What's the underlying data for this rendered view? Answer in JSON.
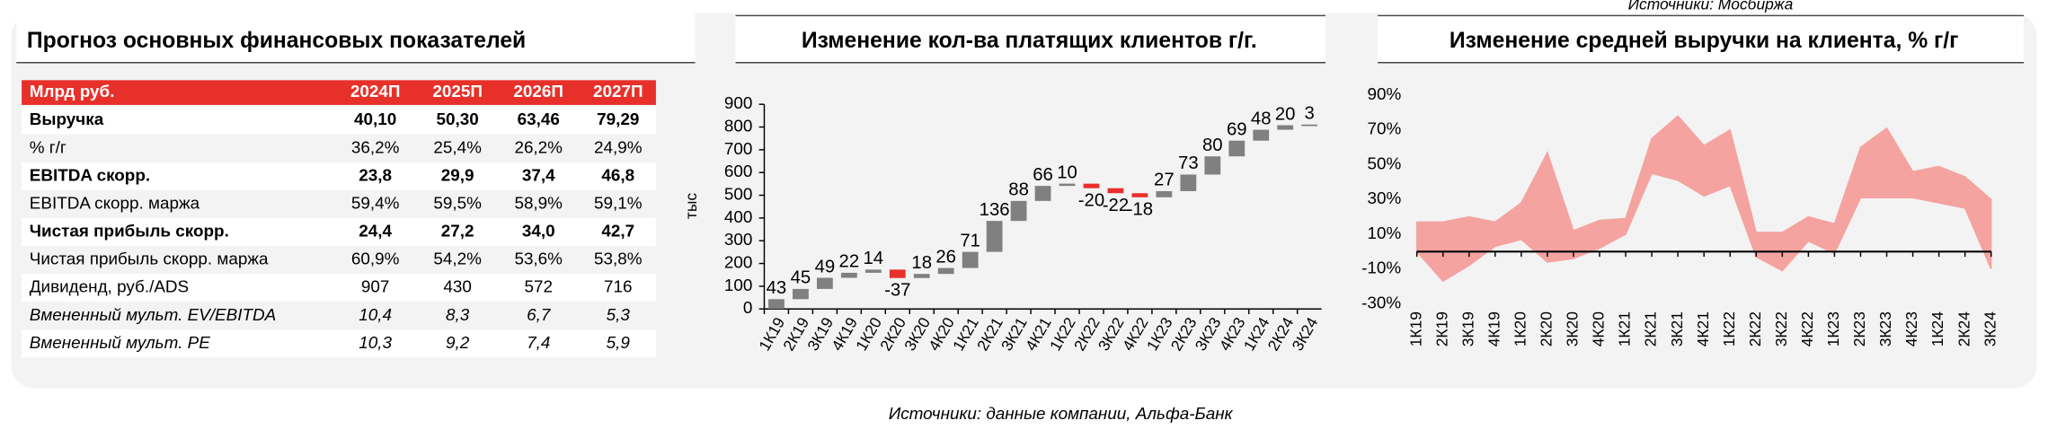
{
  "top_note": "Источники: Мосбиржа",
  "table": {
    "title": "Прогноз основных финансовых показателей",
    "header": [
      "Млрд руб.",
      "2024П",
      "2025П",
      "2026П",
      "2027П"
    ],
    "rows": [
      [
        "Выручка",
        "40,10",
        "50,30",
        "63,46",
        "79,29"
      ],
      [
        "% г/г",
        "36,2%",
        "25,4%",
        "26,2%",
        "24,9%"
      ],
      [
        "EBITDA скорр.",
        "23,8",
        "29,9",
        "37,4",
        "46,8"
      ],
      [
        "EBITDA скорр. маржа",
        "59,4%",
        "59,5%",
        "58,9%",
        "59,1%"
      ],
      [
        "Чистая прибыль скорр.",
        "24,4",
        "27,2",
        "34,0",
        "42,7"
      ],
      [
        "Чистая прибыль скорр. маржа",
        "60,9%",
        "54,2%",
        "53,6%",
        "53,8%"
      ],
      [
        "Дивиденд, руб./ADS",
        "907",
        "430",
        "572",
        "716"
      ],
      [
        "Вмененный мульт. EV/EBITDA",
        "10,4",
        "8,3",
        "6,7",
        "5,3"
      ],
      [
        "Вмененный мульт. PE",
        "10,3",
        "9,2",
        "7,4",
        "5,9"
      ]
    ]
  },
  "chart_data": [
    {
      "type": "waterfall",
      "title": "Изменение кол-ва платящих клиентов г/г.",
      "y_label": "тыс",
      "categories": [
        "1К19",
        "2К19",
        "3К19",
        "4К19",
        "1К20",
        "2К20",
        "3К20",
        "4К20",
        "1К21",
        "2К21",
        "3К21",
        "4К21",
        "1К22",
        "2К22",
        "3К22",
        "4К22",
        "1К23",
        "2К23",
        "3К23",
        "4К23",
        "1К24",
        "2К24",
        "3К24"
      ],
      "values": [
        43,
        45,
        49,
        22,
        14,
        -37,
        18,
        26,
        71,
        136,
        88,
        66,
        10,
        -20,
        -22,
        -18,
        27,
        73,
        80,
        69,
        48,
        20,
        3
      ],
      "color": "#808080",
      "negative_color": "#e8302a",
      "ylim": [
        0,
        900
      ],
      "yticks": [
        0,
        100,
        200,
        300,
        400,
        500,
        600,
        700,
        800,
        900
      ]
    },
    {
      "type": "area_band",
      "title": "Изменение средней выручки на клиента, % г/г",
      "categories": [
        "1К19",
        "2К19",
        "3К19",
        "4К19",
        "1К20",
        "2К20",
        "3К20",
        "4К20",
        "1К21",
        "2К21",
        "3К21",
        "4К21",
        "1К22",
        "2К22",
        "3К22",
        "4К22",
        "1К23",
        "2К23",
        "3К23",
        "4К23",
        "1К24",
        "2К24",
        "3К24"
      ],
      "series": [
        {
          "color": "#f4a3a0",
          "values": [
            17,
            17,
            20,
            17,
            28,
            57,
            12,
            18,
            19,
            65,
            78,
            61,
            70,
            11,
            11,
            20,
            16,
            60,
            71,
            46,
            49,
            43,
            30
          ]
        },
        {
          "color": "#f4a3a0",
          "values": [
            0,
            -17,
            -8,
            3,
            7,
            -6,
            -4,
            2,
            10,
            45,
            41,
            32,
            38,
            -3,
            -11,
            6,
            -1,
            31,
            31,
            31,
            28,
            25,
            -10
          ]
        }
      ],
      "ylim": [
        -30,
        90
      ],
      "yticks": [
        {
          "value": -30,
          "label": "-30%"
        },
        {
          "value": -10,
          "label": "-10%"
        },
        {
          "value": 10,
          "label": "10%"
        },
        {
          "value": 30,
          "label": "30%"
        },
        {
          "value": 50,
          "label": "50%"
        },
        {
          "value": 70,
          "label": "70%"
        },
        {
          "value": 90,
          "label": "90%"
        }
      ]
    }
  ],
  "sources": "Источники: данные компании, Альфа-Банк"
}
